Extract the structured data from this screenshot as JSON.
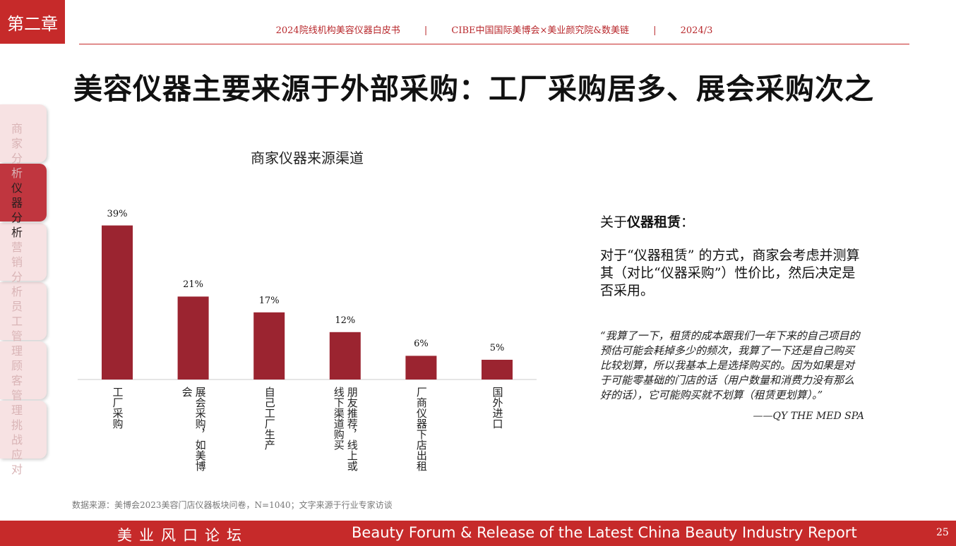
{
  "chapter": "第二章",
  "header": {
    "doc": "2024院线机构美容仪器白皮书",
    "org": "CIBE中国国际美博会×美业颜究院&数美链",
    "date": "2024/3",
    "separator": "|"
  },
  "title": "美容仪器主要来源于外部采购：工厂采购居多、展会采购次之",
  "nav": [
    {
      "label": "商家分析",
      "active": false
    },
    {
      "label": "仪器分析",
      "active": true
    },
    {
      "label": "营销分析",
      "active": false
    },
    {
      "label": "员工管理",
      "active": false
    },
    {
      "label": "顾客管理",
      "active": false
    },
    {
      "label": "挑战应对",
      "active": false
    }
  ],
  "chart_data": {
    "type": "bar",
    "title": "商家仪器来源渠道",
    "categories": [
      "工厂采购",
      "展会采购，如美博会",
      "自己工厂生产",
      "朋友推荐，线上或线下渠道购买",
      "厂商仪器下店出租",
      "国外进口"
    ],
    "values": [
      39,
      21,
      17,
      12,
      6,
      5
    ],
    "value_labels": [
      "39%",
      "21%",
      "17%",
      "12%",
      "6%",
      "5%"
    ],
    "ylim": [
      0,
      40
    ],
    "bar_color": "#9b2430",
    "grid": false
  },
  "about": {
    "prefix": "关于",
    "bold": "仪器租赁",
    "suffix": "："
  },
  "description": "对于“仪器租赁” 的方式，商家会考虑并测算其（对比“仪器采购”）性价比，然后决定是否采用。",
  "quote": "“我算了一下，租赁的成本跟我们一年下来的自己项目的预估可能会耗掉多少的频次，我算了一下还是自己购买比较划算，所以我基本上是选择购买的。因为如果是对于可能零基础的门店的话（用户数量和消费力没有那么好的话），它可能购买就不划算（租赁更划算）。”",
  "quote_source": "——QY THE MED SPA",
  "source": "数据来源：美博会2023美容门店仪器板块问卷，N=1040；文字来源于行业专家访谈",
  "footer": {
    "left": "美业风口论坛",
    "middle": "Beauty Forum & Release of the Latest China Beauty Industry Report",
    "page": "25"
  },
  "colors": {
    "brand": "#c62a2a",
    "bar": "#9b2430"
  }
}
